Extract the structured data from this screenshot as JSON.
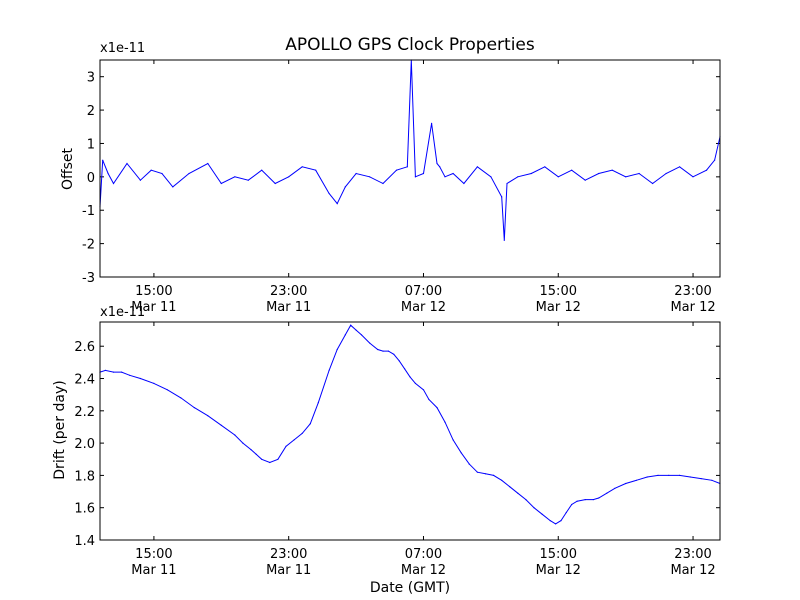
{
  "chart_data": [
    {
      "type": "line",
      "title": "APOLLO GPS Clock Properties",
      "ylabel": "Offset",
      "xlabel": "",
      "scale_note": "x1e-11",
      "ylim": [
        -3,
        3.5
      ],
      "yticks": [
        "-3",
        "-2",
        "-1",
        "0",
        "1",
        "2",
        "3"
      ],
      "xlim": [
        12.5,
        35.5
      ],
      "xticks": [
        {
          "x": 14.5,
          "time": "15:00",
          "date": "Mar 11"
        },
        {
          "x": 19.5,
          "time": "23:00",
          "date": "Mar 11"
        },
        {
          "x": 24.5,
          "time": "07:00",
          "date": "Mar 12"
        },
        {
          "x": 29.5,
          "time": "15:00",
          "date": "Mar 12"
        },
        {
          "x": 34.5,
          "time": "23:00",
          "date": "Mar 12"
        }
      ],
      "line_color": "#0000ff",
      "grid": false,
      "series": [
        {
          "x": [
            12.5,
            12.6,
            12.8,
            13.0,
            13.5,
            14.0,
            14.4,
            14.8,
            15.2,
            15.8,
            16.5,
            17.0,
            17.5,
            18.0,
            18.5,
            19.0,
            19.5,
            20.0,
            20.5,
            21.0,
            21.3,
            21.6,
            22.0,
            22.5,
            23.0,
            23.5,
            23.9,
            24.05,
            24.2,
            24.5,
            24.8,
            25.0,
            25.1,
            25.3,
            25.6,
            26.0,
            26.5,
            27.0,
            27.4,
            27.5,
            27.6,
            28.0,
            28.5,
            29.0,
            29.5,
            30.0,
            30.5,
            31.0,
            31.5,
            32.0,
            32.5,
            33.0,
            33.5,
            34.0,
            34.5,
            35.0,
            35.3,
            35.5
          ],
          "y": [
            -0.9,
            0.5,
            0.1,
            -0.2,
            0.4,
            -0.1,
            0.2,
            0.1,
            -0.3,
            0.1,
            0.4,
            -0.2,
            0.0,
            -0.1,
            0.2,
            -0.2,
            0.0,
            0.3,
            0.2,
            -0.5,
            -0.8,
            -0.3,
            0.1,
            0.0,
            -0.2,
            0.2,
            0.3,
            3.5,
            0.0,
            0.1,
            1.6,
            0.4,
            0.3,
            0.0,
            0.1,
            -0.2,
            0.3,
            0.0,
            -0.6,
            -1.9,
            -0.2,
            0.0,
            0.1,
            0.3,
            0.0,
            0.2,
            -0.1,
            0.1,
            0.2,
            0.0,
            0.1,
            -0.2,
            0.1,
            0.3,
            0.0,
            0.2,
            0.5,
            1.2
          ]
        }
      ]
    },
    {
      "type": "line",
      "title": "",
      "ylabel": "Drift (per day)",
      "xlabel": "Date (GMT)",
      "scale_note": "x1e-11",
      "ylim": [
        1.4,
        2.75
      ],
      "yticks": [
        "1.4",
        "1.6",
        "1.8",
        "2.0",
        "2.2",
        "2.4",
        "2.6"
      ],
      "xlim": [
        12.5,
        35.5
      ],
      "xticks": [
        {
          "x": 14.5,
          "time": "15:00",
          "date": "Mar 11"
        },
        {
          "x": 19.5,
          "time": "23:00",
          "date": "Mar 11"
        },
        {
          "x": 24.5,
          "time": "07:00",
          "date": "Mar 12"
        },
        {
          "x": 29.5,
          "time": "15:00",
          "date": "Mar 12"
        },
        {
          "x": 34.5,
          "time": "23:00",
          "date": "Mar 12"
        }
      ],
      "line_color": "#0000ff",
      "grid": false,
      "series": [
        {
          "x": [
            12.5,
            12.7,
            13.0,
            13.3,
            13.6,
            14.0,
            14.5,
            15.0,
            15.5,
            16.0,
            16.5,
            17.0,
            17.5,
            17.8,
            18.1,
            18.3,
            18.5,
            18.8,
            19.1,
            19.4,
            19.7,
            20.0,
            20.3,
            20.6,
            21.0,
            21.3,
            21.6,
            21.8,
            22.0,
            22.2,
            22.5,
            22.8,
            23.0,
            23.2,
            23.4,
            23.6,
            23.8,
            24.0,
            24.2,
            24.5,
            24.7,
            25.0,
            25.3,
            25.6,
            25.9,
            26.2,
            26.5,
            26.8,
            27.1,
            27.4,
            27.7,
            28.0,
            28.3,
            28.6,
            28.9,
            29.2,
            29.4,
            29.6,
            29.8,
            30.0,
            30.2,
            30.5,
            30.8,
            31.0,
            31.3,
            31.6,
            32.0,
            32.4,
            32.8,
            33.2,
            33.6,
            34.0,
            34.4,
            34.8,
            35.2,
            35.5
          ],
          "y": [
            2.44,
            2.45,
            2.44,
            2.44,
            2.42,
            2.4,
            2.37,
            2.33,
            2.28,
            2.22,
            2.17,
            2.11,
            2.05,
            2.0,
            1.96,
            1.93,
            1.9,
            1.88,
            1.9,
            1.98,
            2.02,
            2.06,
            2.12,
            2.25,
            2.45,
            2.58,
            2.67,
            2.73,
            2.7,
            2.67,
            2.62,
            2.58,
            2.57,
            2.57,
            2.55,
            2.51,
            2.46,
            2.41,
            2.37,
            2.33,
            2.27,
            2.22,
            2.13,
            2.02,
            1.94,
            1.87,
            1.82,
            1.81,
            1.8,
            1.77,
            1.73,
            1.69,
            1.65,
            1.6,
            1.56,
            1.52,
            1.5,
            1.52,
            1.57,
            1.62,
            1.64,
            1.65,
            1.65,
            1.66,
            1.69,
            1.72,
            1.75,
            1.77,
            1.79,
            1.8,
            1.8,
            1.8,
            1.79,
            1.78,
            1.77,
            1.75
          ]
        }
      ]
    }
  ]
}
